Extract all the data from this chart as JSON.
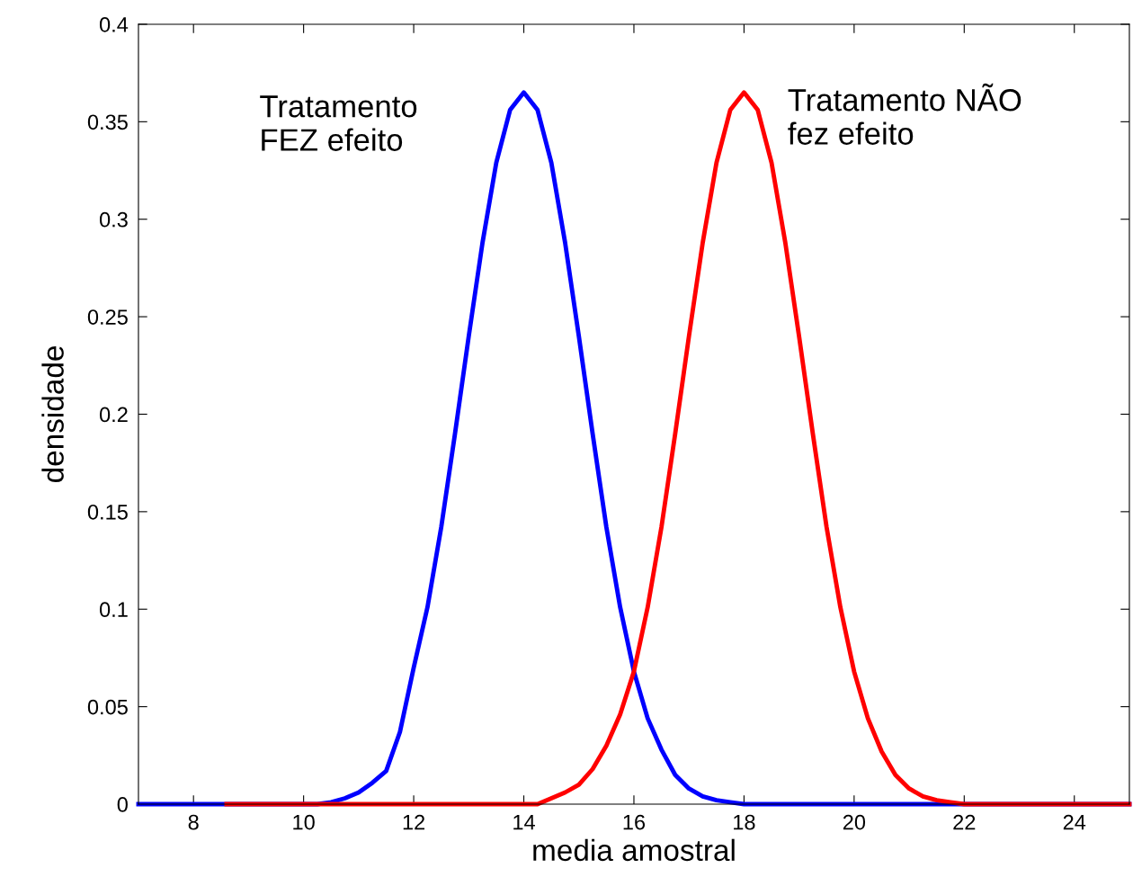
{
  "chart_data": {
    "type": "line",
    "xlabel": "media amostral",
    "ylabel": "densidade",
    "annotations": [
      "Tratamento\nFEZ efeito",
      "Tratamento NÃO\nfez efeito"
    ],
    "xlim": [
      7,
      25
    ],
    "xticks": [
      8,
      10,
      12,
      14,
      16,
      18,
      20,
      22,
      24
    ],
    "ylim": [
      0,
      0.4
    ],
    "yticks": [
      0,
      0.05,
      0.1,
      0.15,
      0.2,
      0.25,
      0.3,
      0.35,
      0.4
    ],
    "grid": false,
    "line_style": "solid",
    "series": [
      {
        "color": "#0000ff",
        "x": [
          7,
          10.25,
          10.5,
          10.75,
          11,
          11.25,
          11.5,
          11.75,
          12,
          12.25,
          12.5,
          12.75,
          13,
          13.25,
          13.5,
          13.75,
          14,
          14.25,
          14.5,
          14.75,
          15,
          15.25,
          15.5,
          15.75,
          16,
          16.25,
          16.5,
          16.75,
          17,
          17.25,
          17.5,
          17.75,
          18,
          25
        ],
        "values": [
          0,
          0,
          0.001,
          0.003,
          0.006,
          0.011,
          0.017,
          0.037,
          0.07,
          0.101,
          0.142,
          0.19,
          0.24,
          0.288,
          0.329,
          0.356,
          0.365,
          0.356,
          0.329,
          0.288,
          0.24,
          0.19,
          0.142,
          0.101,
          0.068,
          0.044,
          0.028,
          0.015,
          0.008,
          0.004,
          0.002,
          0.001,
          0,
          0
        ]
      },
      {
        "color": "#ff0000",
        "x": [
          8.6,
          14.25,
          14.5,
          14.75,
          15,
          15.25,
          15.5,
          15.75,
          16,
          16.25,
          16.5,
          16.75,
          17,
          17.25,
          17.5,
          17.75,
          18,
          18.25,
          18.5,
          18.75,
          19,
          19.25,
          19.5,
          19.75,
          20,
          20.25,
          20.5,
          20.75,
          21,
          21.25,
          21.5,
          21.75,
          22,
          25
        ],
        "values": [
          0,
          0,
          0.003,
          0.006,
          0.01,
          0.018,
          0.03,
          0.046,
          0.068,
          0.101,
          0.142,
          0.19,
          0.24,
          0.288,
          0.329,
          0.356,
          0.365,
          0.356,
          0.329,
          0.288,
          0.24,
          0.19,
          0.142,
          0.101,
          0.068,
          0.044,
          0.027,
          0.015,
          0.008,
          0.004,
          0.002,
          0.001,
          0,
          0
        ]
      }
    ]
  }
}
